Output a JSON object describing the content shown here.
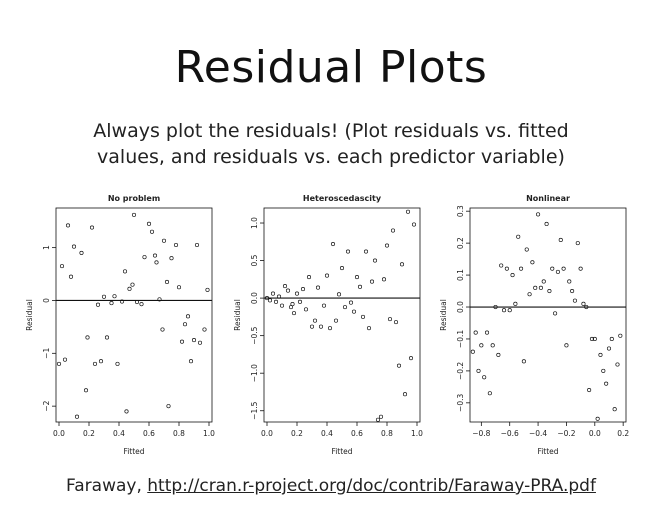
{
  "slide": {
    "title": "Residual Plots",
    "subtitle_line1": "Always plot the residuals! (Plot residuals vs. fitted",
    "subtitle_line2": "values, and residuals vs. each predictor variable)",
    "citation_prefix": "Faraway, ",
    "citation_link": "http://cran.r-project.org/doc/contrib/Faraway-PRA.pdf"
  },
  "chart_data": [
    {
      "type": "scatter",
      "title": "No problem",
      "xlabel": "Fitted",
      "ylabel": "Residual",
      "xlim": [
        -0.02,
        1.02
      ],
      "ylim": [
        -2.3,
        1.75
      ],
      "xticks": [
        0.0,
        0.2,
        0.4,
        0.6,
        0.8,
        1.0
      ],
      "xtick_labels": [
        "0.0",
        "0.2",
        "0.4",
        "0.6",
        "0.8",
        "1.0"
      ],
      "yticks": [
        -2,
        -1,
        0,
        1
      ],
      "ytick_labels": [
        "−2",
        "−1",
        "0",
        "1"
      ],
      "hline": 0,
      "x": [
        0.0,
        0.02,
        0.04,
        0.06,
        0.08,
        0.1,
        0.12,
        0.15,
        0.18,
        0.19,
        0.22,
        0.24,
        0.26,
        0.28,
        0.3,
        0.32,
        0.35,
        0.37,
        0.39,
        0.42,
        0.44,
        0.45,
        0.47,
        0.49,
        0.5,
        0.52,
        0.55,
        0.57,
        0.6,
        0.62,
        0.64,
        0.65,
        0.67,
        0.69,
        0.7,
        0.72,
        0.73,
        0.75,
        0.78,
        0.8,
        0.82,
        0.84,
        0.86,
        0.88,
        0.9,
        0.92,
        0.94,
        0.97,
        0.99
      ],
      "y": [
        -1.2,
        0.65,
        -1.12,
        1.42,
        0.45,
        1.02,
        -2.2,
        0.9,
        -1.7,
        -0.7,
        1.38,
        -1.2,
        -0.08,
        -1.15,
        0.07,
        -0.7,
        -0.05,
        0.08,
        -1.2,
        -0.02,
        0.55,
        -2.1,
        0.22,
        0.3,
        1.62,
        -0.03,
        -0.07,
        0.82,
        1.45,
        1.3,
        0.85,
        0.72,
        0.02,
        -0.55,
        1.13,
        0.35,
        -2.0,
        0.8,
        1.05,
        0.25,
        -0.78,
        -0.45,
        -0.3,
        -1.15,
        -0.75,
        1.05,
        -0.8,
        -0.55,
        0.2
      ]
    },
    {
      "type": "scatter",
      "title": "Heteroscedascity",
      "xlabel": "Fitted",
      "ylabel": "Residual",
      "xlim": [
        -0.02,
        1.02
      ],
      "ylim": [
        -1.65,
        1.2
      ],
      "xticks": [
        0.0,
        0.2,
        0.4,
        0.6,
        0.8,
        1.0
      ],
      "xtick_labels": [
        "0.0",
        "0.2",
        "0.4",
        "0.6",
        "0.8",
        "1.0"
      ],
      "yticks": [
        -1.5,
        -1.0,
        -0.5,
        0.0,
        0.5,
        1.0
      ],
      "ytick_labels": [
        "−1.5",
        "−1.0",
        "−0.5",
        "0.0",
        "0.5",
        "1.0"
      ],
      "hline": 0,
      "x": [
        0.0,
        0.02,
        0.04,
        0.06,
        0.08,
        0.1,
        0.12,
        0.14,
        0.16,
        0.17,
        0.18,
        0.2,
        0.22,
        0.24,
        0.26,
        0.28,
        0.3,
        0.32,
        0.34,
        0.36,
        0.38,
        0.4,
        0.42,
        0.44,
        0.46,
        0.48,
        0.5,
        0.52,
        0.54,
        0.56,
        0.58,
        0.6,
        0.62,
        0.64,
        0.66,
        0.68,
        0.7,
        0.72,
        0.74,
        0.76,
        0.78,
        0.8,
        0.82,
        0.84,
        0.86,
        0.88,
        0.9,
        0.92,
        0.94,
        0.96,
        0.98
      ],
      "y": [
        0.0,
        -0.03,
        0.06,
        -0.05,
        0.02,
        -0.1,
        0.16,
        0.1,
        -0.12,
        -0.08,
        -0.2,
        0.06,
        -0.05,
        0.12,
        -0.15,
        0.28,
        -0.38,
        -0.3,
        0.14,
        -0.38,
        -0.1,
        0.3,
        -0.4,
        0.72,
        -0.3,
        0.05,
        0.4,
        -0.12,
        0.62,
        -0.06,
        -0.18,
        0.28,
        0.15,
        -0.25,
        0.62,
        -0.4,
        0.22,
        0.5,
        -1.62,
        -1.58,
        0.25,
        0.7,
        -0.28,
        0.9,
        -0.32,
        -0.9,
        0.45,
        -1.28,
        1.15,
        -0.8,
        0.98
      ]
    },
    {
      "type": "scatter",
      "title": "Nonlinear",
      "xlabel": "Fitted",
      "ylabel": "Residual",
      "xlim": [
        -0.88,
        0.22
      ],
      "ylim": [
        -0.36,
        0.31
      ],
      "xticks": [
        -0.8,
        -0.6,
        -0.4,
        -0.2,
        0.0,
        0.2
      ],
      "xtick_labels": [
        "−0.8",
        "−0.6",
        "−0.4",
        "−0.2",
        "0.0",
        "0.2"
      ],
      "yticks": [
        -0.3,
        -0.2,
        -0.1,
        0.0,
        0.1,
        0.2,
        0.3
      ],
      "ytick_labels": [
        "−0.3",
        "−0.2",
        "−0.1",
        "0.0",
        "0.1",
        "0.2",
        "0.3"
      ],
      "hline": 0,
      "x": [
        -0.86,
        -0.84,
        -0.82,
        -0.8,
        -0.78,
        -0.76,
        -0.74,
        -0.72,
        -0.7,
        -0.68,
        -0.66,
        -0.64,
        -0.62,
        -0.6,
        -0.58,
        -0.56,
        -0.54,
        -0.52,
        -0.5,
        -0.48,
        -0.46,
        -0.44,
        -0.42,
        -0.4,
        -0.38,
        -0.36,
        -0.34,
        -0.32,
        -0.3,
        -0.28,
        -0.26,
        -0.24,
        -0.22,
        -0.2,
        -0.18,
        -0.16,
        -0.14,
        -0.12,
        -0.1,
        -0.08,
        -0.06,
        -0.04,
        -0.02,
        0.0,
        0.02,
        0.04,
        0.06,
        0.08,
        0.1,
        0.12,
        0.14,
        0.16,
        0.18
      ],
      "y": [
        -0.14,
        -0.08,
        -0.2,
        -0.12,
        -0.22,
        -0.08,
        -0.27,
        -0.12,
        0.0,
        -0.15,
        0.13,
        -0.01,
        0.12,
        -0.01,
        0.1,
        0.01,
        0.22,
        0.12,
        -0.17,
        0.18,
        0.04,
        0.14,
        0.06,
        0.29,
        0.06,
        0.08,
        0.26,
        0.05,
        0.12,
        -0.02,
        0.11,
        0.21,
        0.12,
        -0.12,
        0.08,
        0.05,
        0.02,
        0.2,
        0.12,
        0.01,
        0.0,
        -0.26,
        -0.1,
        -0.1,
        -0.35,
        -0.15,
        -0.2,
        -0.24,
        -0.13,
        -0.1,
        -0.32,
        -0.18,
        -0.09
      ]
    }
  ]
}
